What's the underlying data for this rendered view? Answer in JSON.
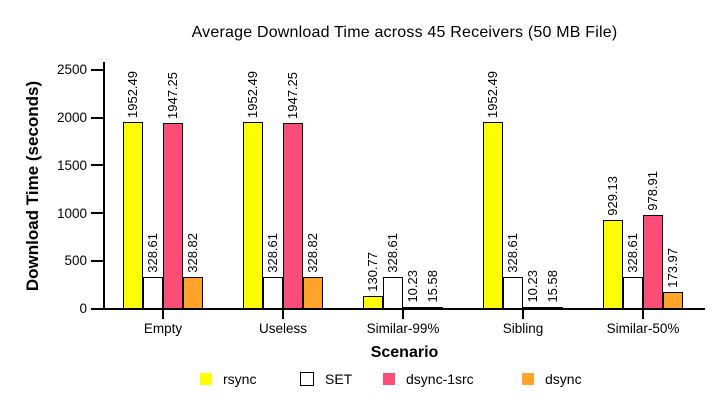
{
  "chart_data": {
    "type": "bar",
    "title": "Average Download Time across 45 Receivers (50 MB File)",
    "xlabel": "Scenario",
    "ylabel": "Download Time (seconds)",
    "categories": [
      "Empty",
      "Useless",
      "Similar-99%",
      "Sibling",
      "Similar-50%"
    ],
    "series": [
      {
        "name": "rsync",
        "color": "#FFFF00",
        "values": [
          1952.49,
          1952.49,
          130.77,
          1952.49,
          929.13
        ]
      },
      {
        "name": "SET",
        "color": "#FFFFFF",
        "values": [
          328.61,
          328.61,
          328.61,
          328.61,
          328.61
        ]
      },
      {
        "name": "dsync-1src",
        "color": "#FA4D78",
        "values": [
          1947.25,
          1947.25,
          10.23,
          10.23,
          978.91
        ]
      },
      {
        "name": "dsync",
        "color": "#FFA428",
        "values": [
          328.82,
          328.82,
          15.58,
          15.58,
          173.97
        ]
      }
    ],
    "yticks": [
      0,
      500,
      1000,
      1500,
      2000,
      2500
    ],
    "ylim": [
      0,
      2600
    ],
    "bar_value_labels": true,
    "value_label_decimals": 2,
    "grid": false,
    "legend_position": "bottom",
    "axis_color": "#000000",
    "background_color": "#FFFFFF"
  }
}
